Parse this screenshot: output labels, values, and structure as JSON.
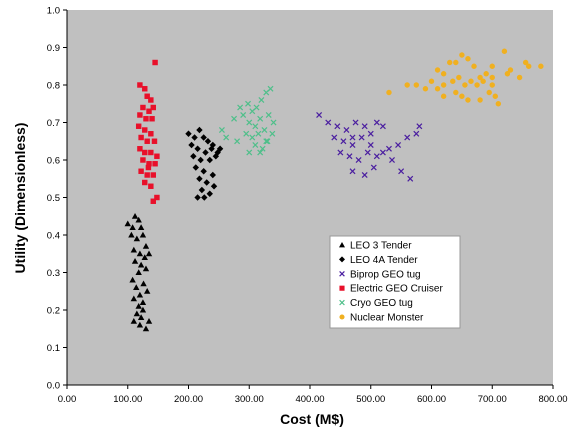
{
  "chart_data": {
    "type": "scatter",
    "title": "",
    "xlabel": "Cost (M$)",
    "ylabel": "Utility (Dimensionless)",
    "xlim": [
      0,
      800
    ],
    "ylim": [
      0,
      1.0
    ],
    "x_ticks": [
      "0.00",
      "100.00",
      "200.00",
      "300.00",
      "400.00",
      "500.00",
      "600.00",
      "700.00",
      "800.00"
    ],
    "y_ticks": [
      "0.0",
      "0.1",
      "0.2",
      "0.3",
      "0.4",
      "0.5",
      "0.6",
      "0.7",
      "0.8",
      "0.9",
      "1.0"
    ],
    "grid": false,
    "plot_background": "#c0c0c0",
    "legend_position": "lower-center",
    "series": [
      {
        "name": "LEO 3 Tender",
        "marker": "triangle",
        "color": "#000000",
        "points": [
          [
            100,
            0.43
          ],
          [
            108,
            0.42
          ],
          [
            112,
            0.45
          ],
          [
            118,
            0.44
          ],
          [
            122,
            0.42
          ],
          [
            106,
            0.4
          ],
          [
            115,
            0.39
          ],
          [
            125,
            0.4
          ],
          [
            130,
            0.37
          ],
          [
            110,
            0.36
          ],
          [
            120,
            0.35
          ],
          [
            128,
            0.34
          ],
          [
            135,
            0.35
          ],
          [
            112,
            0.33
          ],
          [
            122,
            0.32
          ],
          [
            130,
            0.31
          ],
          [
            118,
            0.3
          ],
          [
            108,
            0.28
          ],
          [
            126,
            0.27
          ],
          [
            114,
            0.26
          ],
          [
            120,
            0.24
          ],
          [
            110,
            0.23
          ],
          [
            118,
            0.21
          ],
          [
            125,
            0.2
          ],
          [
            115,
            0.19
          ],
          [
            122,
            0.18
          ],
          [
            110,
            0.17
          ],
          [
            120,
            0.16
          ],
          [
            130,
            0.15
          ],
          [
            135,
            0.17
          ],
          [
            125,
            0.22
          ],
          [
            132,
            0.25
          ]
        ]
      },
      {
        "name": "LEO 4A Tender",
        "marker": "diamond",
        "color": "#000000",
        "points": [
          [
            200,
            0.67
          ],
          [
            210,
            0.66
          ],
          [
            218,
            0.68
          ],
          [
            225,
            0.66
          ],
          [
            232,
            0.65
          ],
          [
            240,
            0.64
          ],
          [
            205,
            0.64
          ],
          [
            215,
            0.63
          ],
          [
            228,
            0.62
          ],
          [
            238,
            0.63
          ],
          [
            248,
            0.62
          ],
          [
            208,
            0.61
          ],
          [
            220,
            0.6
          ],
          [
            235,
            0.6
          ],
          [
            245,
            0.61
          ],
          [
            212,
            0.58
          ],
          [
            225,
            0.57
          ],
          [
            240,
            0.56
          ],
          [
            218,
            0.55
          ],
          [
            230,
            0.54
          ],
          [
            242,
            0.53
          ],
          [
            222,
            0.52
          ],
          [
            235,
            0.51
          ],
          [
            215,
            0.5
          ],
          [
            226,
            0.5
          ],
          [
            252,
            0.63
          ]
        ]
      },
      {
        "name": "Biprop GEO tug",
        "marker": "x",
        "color": "#4b1fa0",
        "points": [
          [
            415,
            0.72
          ],
          [
            430,
            0.7
          ],
          [
            445,
            0.69
          ],
          [
            460,
            0.68
          ],
          [
            475,
            0.7
          ],
          [
            490,
            0.69
          ],
          [
            510,
            0.7
          ],
          [
            520,
            0.69
          ],
          [
            440,
            0.66
          ],
          [
            455,
            0.65
          ],
          [
            470,
            0.64
          ],
          [
            485,
            0.66
          ],
          [
            500,
            0.64
          ],
          [
            520,
            0.62
          ],
          [
            535,
            0.6
          ],
          [
            450,
            0.62
          ],
          [
            465,
            0.61
          ],
          [
            480,
            0.6
          ],
          [
            495,
            0.62
          ],
          [
            510,
            0.61
          ],
          [
            530,
            0.63
          ],
          [
            545,
            0.64
          ],
          [
            560,
            0.66
          ],
          [
            575,
            0.67
          ],
          [
            580,
            0.69
          ],
          [
            470,
            0.57
          ],
          [
            490,
            0.56
          ],
          [
            505,
            0.58
          ],
          [
            550,
            0.57
          ],
          [
            565,
            0.55
          ],
          [
            470,
            0.66
          ],
          [
            500,
            0.67
          ]
        ]
      },
      {
        "name": "Electric GEO Cruiser",
        "marker": "square",
        "color": "#e8102a",
        "points": [
          [
            120,
            0.8
          ],
          [
            128,
            0.79
          ],
          [
            145,
            0.86
          ],
          [
            132,
            0.77
          ],
          [
            138,
            0.76
          ],
          [
            125,
            0.74
          ],
          [
            135,
            0.73
          ],
          [
            142,
            0.74
          ],
          [
            120,
            0.72
          ],
          [
            130,
            0.71
          ],
          [
            140,
            0.71
          ],
          [
            118,
            0.69
          ],
          [
            128,
            0.68
          ],
          [
            138,
            0.67
          ],
          [
            122,
            0.66
          ],
          [
            132,
            0.65
          ],
          [
            144,
            0.65
          ],
          [
            120,
            0.63
          ],
          [
            128,
            0.62
          ],
          [
            138,
            0.62
          ],
          [
            148,
            0.61
          ],
          [
            125,
            0.6
          ],
          [
            135,
            0.59
          ],
          [
            145,
            0.59
          ],
          [
            122,
            0.57
          ],
          [
            132,
            0.56
          ],
          [
            142,
            0.56
          ],
          [
            128,
            0.54
          ],
          [
            138,
            0.53
          ],
          [
            148,
            0.5
          ],
          [
            142,
            0.49
          ],
          [
            134,
            0.58
          ]
        ]
      },
      {
        "name": "Cryo GEO tug",
        "marker": "x",
        "color": "#4fbf8a",
        "points": [
          [
            255,
            0.68
          ],
          [
            262,
            0.66
          ],
          [
            275,
            0.71
          ],
          [
            285,
            0.74
          ],
          [
            290,
            0.72
          ],
          [
            298,
            0.75
          ],
          [
            305,
            0.73
          ],
          [
            312,
            0.74
          ],
          [
            320,
            0.76
          ],
          [
            328,
            0.78
          ],
          [
            335,
            0.79
          ],
          [
            300,
            0.7
          ],
          [
            310,
            0.69
          ],
          [
            318,
            0.71
          ],
          [
            325,
            0.68
          ],
          [
            332,
            0.72
          ],
          [
            340,
            0.7
          ],
          [
            295,
            0.67
          ],
          [
            305,
            0.66
          ],
          [
            315,
            0.67
          ],
          [
            328,
            0.65
          ],
          [
            338,
            0.67
          ],
          [
            310,
            0.64
          ],
          [
            322,
            0.63
          ],
          [
            330,
            0.65
          ],
          [
            318,
            0.62
          ],
          [
            280,
            0.65
          ],
          [
            300,
            0.62
          ]
        ]
      },
      {
        "name": "Nuclear Monster",
        "marker": "circle",
        "color": "#f0b020",
        "points": [
          [
            530,
            0.78
          ],
          [
            560,
            0.8
          ],
          [
            575,
            0.8
          ],
          [
            590,
            0.79
          ],
          [
            600,
            0.81
          ],
          [
            610,
            0.84
          ],
          [
            620,
            0.83
          ],
          [
            630,
            0.86
          ],
          [
            640,
            0.86
          ],
          [
            650,
            0.88
          ],
          [
            660,
            0.87
          ],
          [
            670,
            0.85
          ],
          [
            680,
            0.82
          ],
          [
            690,
            0.83
          ],
          [
            700,
            0.82
          ],
          [
            720,
            0.89
          ],
          [
            730,
            0.84
          ],
          [
            745,
            0.82
          ],
          [
            755,
            0.86
          ],
          [
            760,
            0.85
          ],
          [
            780,
            0.85
          ],
          [
            620,
            0.8
          ],
          [
            635,
            0.81
          ],
          [
            645,
            0.82
          ],
          [
            655,
            0.8
          ],
          [
            665,
            0.81
          ],
          [
            675,
            0.8
          ],
          [
            685,
            0.81
          ],
          [
            695,
            0.78
          ],
          [
            705,
            0.77
          ],
          [
            710,
            0.75
          ],
          [
            620,
            0.77
          ],
          [
            640,
            0.78
          ],
          [
            650,
            0.77
          ],
          [
            680,
            0.76
          ],
          [
            700,
            0.8
          ],
          [
            725,
            0.83
          ],
          [
            610,
            0.79
          ],
          [
            660,
            0.76
          ],
          [
            700,
            0.85
          ]
        ]
      }
    ]
  }
}
